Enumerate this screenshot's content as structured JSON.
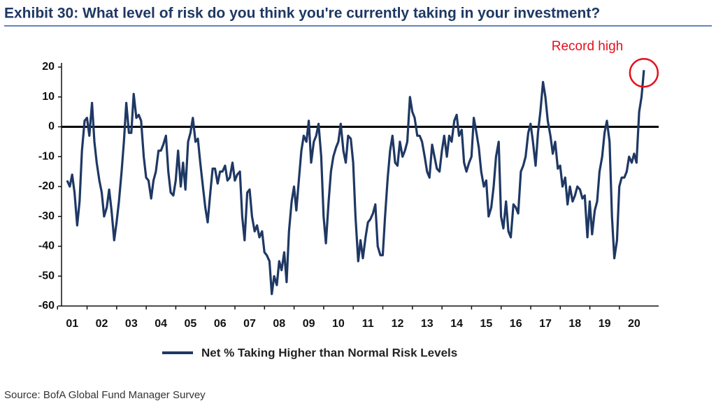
{
  "chart_data": {
    "type": "line",
    "title": "Exhibit 30: What level of risk do you think you're currently taking in your investment?",
    "annotation": "Record high",
    "source": "Source: BofA Global Fund Manager Survey",
    "xlim": [
      1.14,
      21.33
    ],
    "xticks": [
      {
        "value": 1.5,
        "label": "01"
      },
      {
        "value": 2.5,
        "label": "02"
      },
      {
        "value": 3.5,
        "label": "03"
      },
      {
        "value": 4.5,
        "label": "04"
      },
      {
        "value": 5.5,
        "label": "05"
      },
      {
        "value": 6.5,
        "label": "06"
      },
      {
        "value": 7.5,
        "label": "07"
      },
      {
        "value": 8.5,
        "label": "08"
      },
      {
        "value": 9.5,
        "label": "09"
      },
      {
        "value": 10.5,
        "label": "10"
      },
      {
        "value": 11.5,
        "label": "11"
      },
      {
        "value": 12.5,
        "label": "12"
      },
      {
        "value": 13.5,
        "label": "13"
      },
      {
        "value": 14.5,
        "label": "14"
      },
      {
        "value": 15.5,
        "label": "15"
      },
      {
        "value": 16.5,
        "label": "16"
      },
      {
        "value": 17.5,
        "label": "17"
      },
      {
        "value": 18.5,
        "label": "18"
      },
      {
        "value": 19.5,
        "label": "19"
      },
      {
        "value": 20.5,
        "label": "20"
      }
    ],
    "ylim": [
      -60,
      20
    ],
    "yticks": [
      20,
      10,
      0,
      -10,
      -20,
      -30,
      -40,
      -50,
      -60
    ],
    "x": [
      1.33,
      1.42,
      1.5,
      1.58,
      1.67,
      1.75,
      1.83,
      1.92,
      2,
      2.08,
      2.17,
      2.25,
      2.33,
      2.42,
      2.5,
      2.58,
      2.67,
      2.75,
      2.83,
      2.92,
      3,
      3.08,
      3.17,
      3.25,
      3.33,
      3.42,
      3.5,
      3.58,
      3.67,
      3.75,
      3.83,
      3.92,
      4,
      4.08,
      4.17,
      4.25,
      4.33,
      4.42,
      4.5,
      4.58,
      4.67,
      4.75,
      4.83,
      4.92,
      5,
      5.08,
      5.17,
      5.25,
      5.33,
      5.42,
      5.5,
      5.58,
      5.67,
      5.75,
      5.83,
      5.92,
      6,
      6.08,
      6.17,
      6.25,
      6.33,
      6.42,
      6.5,
      6.58,
      6.67,
      6.75,
      6.83,
      6.92,
      7,
      7.08,
      7.17,
      7.25,
      7.33,
      7.42,
      7.5,
      7.58,
      7.67,
      7.75,
      7.83,
      7.92,
      8,
      8.08,
      8.17,
      8.25,
      8.33,
      8.42,
      8.5,
      8.58,
      8.67,
      8.75,
      8.83,
      8.92,
      9,
      9.08,
      9.17,
      9.25,
      9.33,
      9.42,
      9.5,
      9.58,
      9.67,
      9.75,
      9.83,
      9.92,
      10,
      10.08,
      10.17,
      10.25,
      10.33,
      10.42,
      10.5,
      10.58,
      10.67,
      10.75,
      10.83,
      10.92,
      11,
      11.08,
      11.17,
      11.25,
      11.33,
      11.42,
      11.5,
      11.58,
      11.67,
      11.75,
      11.83,
      11.92,
      12,
      12.08,
      12.17,
      12.25,
      12.33,
      12.42,
      12.5,
      12.58,
      12.67,
      12.75,
      12.83,
      12.92,
      13,
      13.08,
      13.17,
      13.25,
      13.33,
      13.42,
      13.5,
      13.58,
      13.67,
      13.75,
      13.83,
      13.92,
      14,
      14.08,
      14.17,
      14.25,
      14.33,
      14.42,
      14.5,
      14.58,
      14.67,
      14.75,
      14.83,
      14.92,
      15,
      15.08,
      15.17,
      15.25,
      15.33,
      15.42,
      15.5,
      15.58,
      15.67,
      15.75,
      15.83,
      15.92,
      16,
      16.08,
      16.17,
      16.25,
      16.33,
      16.42,
      16.5,
      16.58,
      16.67,
      16.75,
      16.83,
      16.92,
      17,
      17.08,
      17.17,
      17.25,
      17.33,
      17.42,
      17.5,
      17.58,
      17.67,
      17.75,
      17.83,
      17.92,
      18,
      18.08,
      18.17,
      18.25,
      18.33,
      18.42,
      18.5,
      18.58,
      18.67,
      18.75,
      18.83,
      18.92,
      19,
      19.08,
      19.17,
      19.25,
      19.33,
      19.42,
      19.5,
      19.58,
      19.67,
      19.75,
      19.83,
      19.92,
      20,
      20.08,
      20.17,
      20.25,
      20.33,
      20.42,
      20.5,
      20.58,
      20.67,
      20.75,
      20.83
    ],
    "series": [
      {
        "name": "Net % Taking Higher than Normal Risk Levels",
        "color": "#1f3864",
        "values": [
          -18,
          -20,
          -16,
          -22,
          -33,
          -25,
          -8,
          2,
          3,
          -3,
          8,
          -5,
          -12,
          -18,
          -22,
          -30,
          -27,
          -21,
          -28,
          -38,
          -32,
          -25,
          -15,
          -5,
          8,
          -2,
          -2,
          11,
          3,
          4,
          2,
          -10,
          -17,
          -18,
          -24,
          -18,
          -15,
          -8,
          -8,
          -6,
          -3,
          -15,
          -22,
          -23,
          -18,
          -8,
          -20,
          -12,
          -21,
          -5,
          -2,
          3,
          -5,
          -4,
          -12,
          -20,
          -27,
          -32,
          -22,
          -14,
          -14,
          -19,
          -15,
          -15,
          -13,
          -18,
          -17,
          -12,
          -18,
          -16,
          -15,
          -30,
          -38,
          -22,
          -21,
          -30,
          -35,
          -33,
          -37,
          -35,
          -42,
          -43,
          -45,
          -56,
          -50,
          -53,
          -45,
          -48,
          -42,
          -52,
          -35,
          -25,
          -20,
          -28,
          -17,
          -8,
          -3,
          -5,
          2,
          -12,
          -5,
          -3,
          1,
          -10,
          -30,
          -39,
          -25,
          -15,
          -10,
          -7,
          -5,
          1,
          -8,
          -12,
          -3,
          -4,
          -12,
          -30,
          -45,
          -38,
          -44,
          -37,
          -32,
          -31,
          -29,
          -26,
          -40,
          -43,
          -43,
          -30,
          -17,
          -8,
          -3,
          -12,
          -13,
          -5,
          -10,
          -8,
          -5,
          10,
          5,
          3,
          -3,
          -3,
          -5,
          -10,
          -15,
          -17,
          -6,
          -10,
          -14,
          -15,
          -8,
          -3,
          -10,
          -3,
          -5,
          2,
          4,
          -3,
          -1,
          -12,
          -15,
          -12,
          -10,
          3,
          -2,
          -7,
          -15,
          -20,
          -18,
          -30,
          -27,
          -20,
          -10,
          -5,
          -30,
          -34,
          -25,
          -35,
          -37,
          -26,
          -27,
          -29,
          -15,
          -13,
          -10,
          -2,
          1,
          -5,
          -13,
          -2,
          5,
          15,
          10,
          2,
          -3,
          -9,
          -5,
          -14,
          -13,
          -20,
          -17,
          -26,
          -20,
          -25,
          -23,
          -20,
          -21,
          -24,
          -23,
          -37,
          -25,
          -36,
          -28,
          -25,
          -15,
          -10,
          -2,
          2,
          -5,
          -30,
          -44,
          -38,
          -20,
          -17,
          -17,
          -15,
          -10,
          -12,
          -9,
          -12,
          5,
          10,
          19
        ]
      }
    ]
  }
}
